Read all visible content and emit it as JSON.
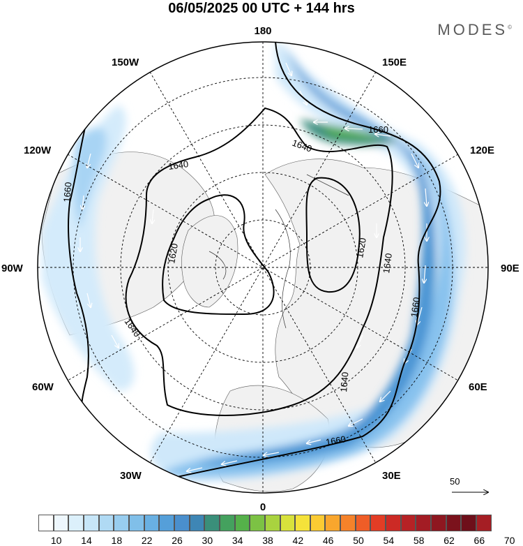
{
  "header": {
    "title": "06/05/2025  00 UTC  + 144 hrs",
    "brand": "MODES",
    "brand_mark": "©"
  },
  "map": {
    "projection": "north polar stereographic",
    "longitude_labels": {
      "top": "180",
      "bottom": "0",
      "left": "90W",
      "right": "90E",
      "upper_left": "150W",
      "upper_left2": "120W",
      "lower_left": "60W",
      "lower_left2": "30W",
      "upper_right": "150E",
      "upper_right2": "120E",
      "lower_right": "60E",
      "lower_right2": "30E"
    },
    "contour_labels": [
      "1640",
      "1660",
      "1640",
      "1620",
      "1620",
      "1640",
      "1660",
      "1640",
      "1640",
      "1660",
      "1660"
    ],
    "colors": {
      "land": "#f2f2f2",
      "ocean": "#ffffff",
      "jet_light": "#d6ecfb",
      "jet_mid": "#9ccbf0",
      "jet_strong": "#4d97d6",
      "jet_core": "#3a8f7a",
      "jet_max": "#59b84f"
    }
  },
  "colorbar": {
    "colors": [
      "#ffffff",
      "#eef7fd",
      "#dcf0fb",
      "#c7e6f8",
      "#b0daf4",
      "#98cdef",
      "#80bfe9",
      "#69b0e2",
      "#559fd9",
      "#4a8fcd",
      "#3e86b5",
      "#3a8f7a",
      "#44a15e",
      "#55b14a",
      "#7cc244",
      "#a9d33f",
      "#d8e23c",
      "#f5e23a",
      "#fbcb33",
      "#f9a62d",
      "#f5822a",
      "#ef5d27",
      "#e33d25",
      "#cc2a25",
      "#b62225",
      "#a31c24",
      "#8e1720",
      "#7b121c",
      "#6e0f1a",
      "#a51e24"
    ],
    "ticks": [
      "10",
      "14",
      "18",
      "22",
      "26",
      "30",
      "34",
      "38",
      "42",
      "46",
      "50",
      "54",
      "58",
      "62",
      "66",
      "70"
    ]
  },
  "vector_reference": {
    "label": "50"
  }
}
